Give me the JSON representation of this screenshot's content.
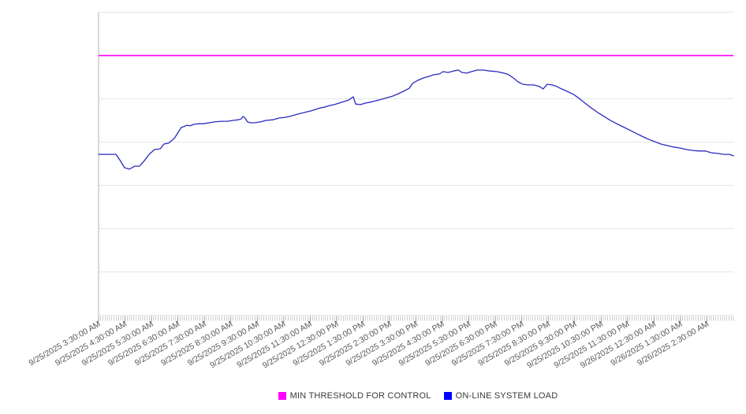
{
  "page": {
    "background": "#ffffff"
  },
  "legend": [
    {
      "label": "MIN THRESHOLD FOR CONTROL",
      "color": "#ff00ff"
    },
    {
      "label": "ON-LINE SYSTEM LOAD",
      "color": "#0000ff"
    }
  ],
  "chart_data": {
    "type": "line",
    "title": "",
    "xlabel": "",
    "ylabel": "",
    "legend_position": "bottom",
    "grid": "horizontal",
    "y_axis": {
      "labels_visible": false,
      "ylim": [
        0,
        100
      ],
      "gridline_divisions": 7
    },
    "x_axis": {
      "range_hours": [
        3.5,
        27.5
      ],
      "minor_tick_count": 288,
      "major_tick_interval_hours": 1
    },
    "x_labels": [
      "9/25/2025 3:30:00 AM",
      "9/25/2025 4:30:00 AM",
      "9/25/2025 5:30:00 AM",
      "9/25/2025 6:30:00 AM",
      "9/25/2025 7:30:00 AM",
      "9/25/2025 8:30:00 AM",
      "9/25/2025 9:30:00 AM",
      "9/25/2025 10:30:00 AM",
      "9/25/2025 11:30:00 AM",
      "9/25/2025 12:30:00 PM",
      "9/25/2025 1:30:00 PM",
      "9/25/2025 2:30:00 PM",
      "9/25/2025 3:30:00 PM",
      "9/25/2025 4:30:00 PM",
      "9/25/2025 5:30:00 PM",
      "9/25/2025 6:30:00 PM",
      "9/25/2025 7:30:00 PM",
      "9/25/2025 8:30:00 PM",
      "9/25/2025 9:30:00 PM",
      "9/25/2025 10:30:00 PM",
      "9/25/2025 11:30:00 PM",
      "9/26/2025 12:30:00 AM",
      "9/26/2025 1:30:00 AM",
      "9/26/2025 2:30:00 AM"
    ],
    "series": [
      {
        "name": "MIN THRESHOLD FOR CONTROL",
        "color": "#ff00ff",
        "style": "constant-threshold",
        "value": 85.7
      },
      {
        "name": "ON-LINE SYSTEM LOAD",
        "color": "#2b2bbf",
        "style": "line",
        "points": [
          [
            3.5,
            53.1
          ],
          [
            4.16,
            53.1
          ],
          [
            4.3,
            51.3
          ],
          [
            4.48,
            48.7
          ],
          [
            4.66,
            48.2
          ],
          [
            4.87,
            49.2
          ],
          [
            5.05,
            49.2
          ],
          [
            5.23,
            51.0
          ],
          [
            5.41,
            53.1
          ],
          [
            5.62,
            54.7
          ],
          [
            5.83,
            54.9
          ],
          [
            5.97,
            56.5
          ],
          [
            6.15,
            56.8
          ],
          [
            6.36,
            58.3
          ],
          [
            6.51,
            60.4
          ],
          [
            6.63,
            62.0
          ],
          [
            6.72,
            62.2
          ],
          [
            6.84,
            62.7
          ],
          [
            6.96,
            62.5
          ],
          [
            7.11,
            63.0
          ],
          [
            7.29,
            63.2
          ],
          [
            7.47,
            63.2
          ],
          [
            7.67,
            63.5
          ],
          [
            7.88,
            63.8
          ],
          [
            8.12,
            64.0
          ],
          [
            8.36,
            64.0
          ],
          [
            8.6,
            64.3
          ],
          [
            8.78,
            64.5
          ],
          [
            8.9,
            64.8
          ],
          [
            8.96,
            65.6
          ],
          [
            9.04,
            65.1
          ],
          [
            9.13,
            63.8
          ],
          [
            9.25,
            63.5
          ],
          [
            9.4,
            63.5
          ],
          [
            9.61,
            63.8
          ],
          [
            9.85,
            64.3
          ],
          [
            10.09,
            64.5
          ],
          [
            10.33,
            65.1
          ],
          [
            10.56,
            65.3
          ],
          [
            10.8,
            65.8
          ],
          [
            11.04,
            66.4
          ],
          [
            11.28,
            66.9
          ],
          [
            11.52,
            67.4
          ],
          [
            11.7,
            67.9
          ],
          [
            11.87,
            68.4
          ],
          [
            12.05,
            68.7
          ],
          [
            12.23,
            69.2
          ],
          [
            12.41,
            69.5
          ],
          [
            12.59,
            70.0
          ],
          [
            12.77,
            70.5
          ],
          [
            12.95,
            71.0
          ],
          [
            13.13,
            72.1
          ],
          [
            13.22,
            69.7
          ],
          [
            13.4,
            69.5
          ],
          [
            13.58,
            70.0
          ],
          [
            13.79,
            70.3
          ],
          [
            14.0,
            70.8
          ],
          [
            14.21,
            71.3
          ],
          [
            14.41,
            71.8
          ],
          [
            14.62,
            72.3
          ],
          [
            14.83,
            73.1
          ],
          [
            15.03,
            73.9
          ],
          [
            15.25,
            74.9
          ],
          [
            15.37,
            76.5
          ],
          [
            15.57,
            77.5
          ],
          [
            15.78,
            78.3
          ],
          [
            15.99,
            78.8
          ],
          [
            16.19,
            79.4
          ],
          [
            16.38,
            79.6
          ],
          [
            16.53,
            80.4
          ],
          [
            16.71,
            80.1
          ],
          [
            16.92,
            80.6
          ],
          [
            17.1,
            80.9
          ],
          [
            17.24,
            80.1
          ],
          [
            17.42,
            79.9
          ],
          [
            17.6,
            80.4
          ],
          [
            17.81,
            80.9
          ],
          [
            18.05,
            80.9
          ],
          [
            18.29,
            80.6
          ],
          [
            18.56,
            80.4
          ],
          [
            18.82,
            79.9
          ],
          [
            19.0,
            79.4
          ],
          [
            19.18,
            78.3
          ],
          [
            19.36,
            77.0
          ],
          [
            19.54,
            76.2
          ],
          [
            19.74,
            76.0
          ],
          [
            19.95,
            76.0
          ],
          [
            20.16,
            75.5
          ],
          [
            20.31,
            74.7
          ],
          [
            20.46,
            76.2
          ],
          [
            20.64,
            76.0
          ],
          [
            20.82,
            75.5
          ],
          [
            21.0,
            74.7
          ],
          [
            21.21,
            73.9
          ],
          [
            21.45,
            72.9
          ],
          [
            21.66,
            71.6
          ],
          [
            21.89,
            70.0
          ],
          [
            22.13,
            68.4
          ],
          [
            22.37,
            66.9
          ],
          [
            22.61,
            65.6
          ],
          [
            22.85,
            64.3
          ],
          [
            23.09,
            63.2
          ],
          [
            23.32,
            62.2
          ],
          [
            23.56,
            61.2
          ],
          [
            23.8,
            60.1
          ],
          [
            24.04,
            59.1
          ],
          [
            24.28,
            58.1
          ],
          [
            24.52,
            57.3
          ],
          [
            24.76,
            56.5
          ],
          [
            25.0,
            56.0
          ],
          [
            25.23,
            55.5
          ],
          [
            25.47,
            55.2
          ],
          [
            25.71,
            54.7
          ],
          [
            25.95,
            54.4
          ],
          [
            26.19,
            54.2
          ],
          [
            26.43,
            54.2
          ],
          [
            26.67,
            53.6
          ],
          [
            26.9,
            53.4
          ],
          [
            27.14,
            53.1
          ],
          [
            27.35,
            53.1
          ],
          [
            27.5,
            52.6
          ]
        ]
      }
    ],
    "style_colors": {
      "gridline": "#e6e6e6",
      "axis_line": "#b3b3b3",
      "minor_tick": "#a3a3a3",
      "axis_label_text": "#595959"
    }
  }
}
